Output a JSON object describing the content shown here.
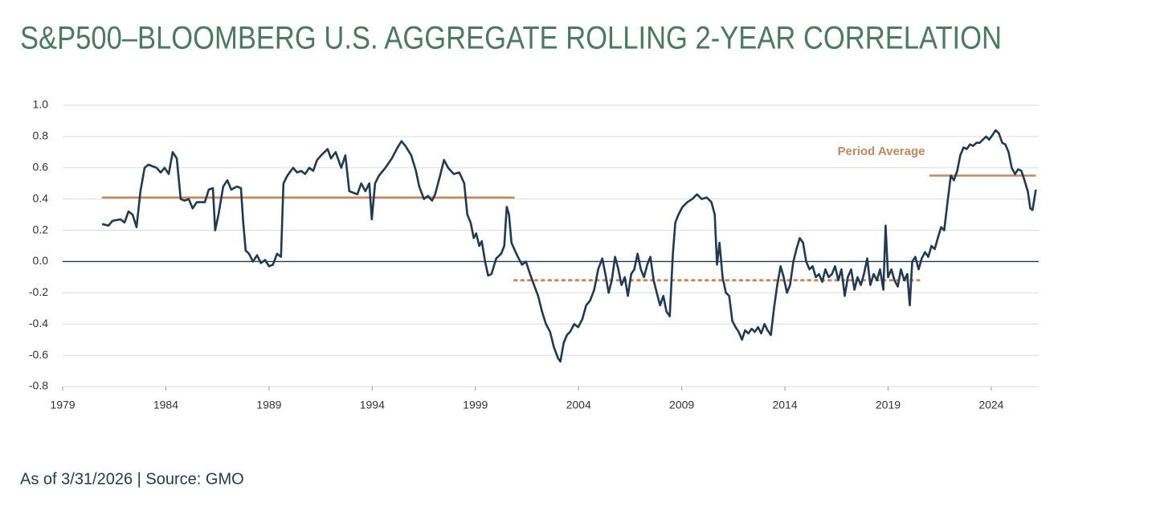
{
  "chart_data": {
    "type": "line",
    "title": "S&P500–BLOOMBERG U.S. AGGREGATE ROLLING 2-YEAR CORRELATION",
    "footnote": "As of 3/31/2026 | Source: GMO",
    "annotation": "Period Average",
    "color": "#1f3a52",
    "average_color": "#c8875a",
    "grid": true,
    "xlim": [
      1979,
      2026.3
    ],
    "xticks": [
      1979,
      1984,
      1989,
      1994,
      1999,
      2004,
      2009,
      2014,
      2019,
      2024
    ],
    "ylim": [
      -0.8,
      1.0
    ],
    "yticks": [
      {
        "value": 1,
        "label": "1.0"
      },
      0.8,
      0.6,
      0.4,
      0.2,
      {
        "value": 0,
        "label": "0.0"
      },
      -0.2,
      -0.4,
      -0.6,
      -0.8
    ],
    "reference_lines": [
      {
        "x": [
          1980.9,
          2000.9
        ],
        "value": 0.41,
        "style": "solid"
      },
      {
        "x": [
          2000.9,
          2020.5
        ],
        "value": -0.12,
        "style": "dotted"
      },
      {
        "x": [
          2021.0,
          2026.16
        ],
        "value": 0.55,
        "style": "solid"
      }
    ],
    "x": [
      1980.91,
      1981.22,
      1981.41,
      1981.8,
      1982.0,
      1982.19,
      1982.39,
      1982.58,
      1982.77,
      1982.97,
      1983.16,
      1983.55,
      1983.75,
      1983.94,
      1984.14,
      1984.33,
      1984.53,
      1984.72,
      1984.91,
      1985.11,
      1985.3,
      1985.5,
      1985.89,
      1986.08,
      1986.28,
      1986.39,
      1986.55,
      1986.78,
      1986.98,
      1987.17,
      1987.44,
      1987.64,
      1987.75,
      1987.87,
      1988.03,
      1988.22,
      1988.42,
      1988.61,
      1988.81,
      1989.0,
      1989.19,
      1989.39,
      1989.58,
      1989.7,
      1989.89,
      1990.17,
      1990.36,
      1990.56,
      1990.75,
      1990.95,
      1991.14,
      1991.33,
      1991.53,
      1991.84,
      1992.0,
      1992.23,
      1992.5,
      1992.7,
      1992.89,
      1993.09,
      1993.28,
      1993.47,
      1993.67,
      1993.86,
      1993.98,
      1994.14,
      1994.33,
      1994.64,
      1994.95,
      1995.23,
      1995.42,
      1995.61,
      1995.89,
      1996.12,
      1996.28,
      1996.51,
      1996.7,
      1996.9,
      1997.05,
      1997.29,
      1997.48,
      1997.68,
      1997.95,
      1998.22,
      1998.46,
      1998.61,
      1998.77,
      1998.92,
      1999.04,
      1999.19,
      1999.31,
      1999.47,
      1999.62,
      1999.78,
      2000.01,
      2000.25,
      2000.4,
      2000.52,
      2000.63,
      2000.75,
      2000.95,
      2001.1,
      2001.26,
      2001.45,
      2001.65,
      2001.84,
      2002.04,
      2002.23,
      2002.42,
      2002.62,
      2002.81,
      2003.01,
      2003.12,
      2003.28,
      2003.44,
      2003.59,
      2003.79,
      2003.98,
      2004.18,
      2004.37,
      2004.56,
      2004.76,
      2004.95,
      2005.15,
      2005.3,
      2005.46,
      2005.61,
      2005.77,
      2005.93,
      2006.08,
      2006.24,
      2006.39,
      2006.55,
      2006.7,
      2006.86,
      2007.02,
      2007.17,
      2007.33,
      2007.48,
      2007.64,
      2007.79,
      2007.95,
      2008.11,
      2008.26,
      2008.42,
      2008.57,
      2008.69,
      2008.84,
      2009.04,
      2009.27,
      2009.51,
      2009.74,
      2009.97,
      2010.21,
      2010.44,
      2010.6,
      2010.71,
      2010.83,
      2010.98,
      2011.14,
      2011.3,
      2011.45,
      2011.61,
      2011.76,
      2011.92,
      2012.07,
      2012.23,
      2012.39,
      2012.54,
      2012.7,
      2012.85,
      2013.01,
      2013.16,
      2013.32,
      2013.47,
      2013.63,
      2013.79,
      2013.94,
      2014.1,
      2014.25,
      2014.41,
      2014.56,
      2014.72,
      2014.88,
      2015.03,
      2015.19,
      2015.34,
      2015.5,
      2015.65,
      2015.81,
      2015.96,
      2016.12,
      2016.28,
      2016.43,
      2016.59,
      2016.74,
      2016.9,
      2017.05,
      2017.21,
      2017.37,
      2017.52,
      2017.68,
      2017.83,
      2017.99,
      2018.14,
      2018.3,
      2018.46,
      2018.61,
      2018.77,
      2018.88,
      2019.0,
      2019.16,
      2019.31,
      2019.47,
      2019.62,
      2019.78,
      2019.93,
      2020.05,
      2020.17,
      2020.32,
      2020.48,
      2020.63,
      2020.79,
      2020.95,
      2021.1,
      2021.26,
      2021.41,
      2021.57,
      2021.72,
      2021.88,
      2022.04,
      2022.19,
      2022.35,
      2022.5,
      2022.66,
      2022.81,
      2022.97,
      2023.12,
      2023.28,
      2023.44,
      2023.59,
      2023.75,
      2023.9,
      2024.06,
      2024.21,
      2024.37,
      2024.53,
      2024.68,
      2024.84,
      2024.99,
      2025.15,
      2025.3,
      2025.46,
      2025.61,
      2025.77,
      2025.89,
      2026.0,
      2026.16
    ],
    "values": [
      0.24,
      0.23,
      0.26,
      0.27,
      0.25,
      0.32,
      0.3,
      0.22,
      0.45,
      0.6,
      0.62,
      0.6,
      0.57,
      0.6,
      0.56,
      0.7,
      0.66,
      0.4,
      0.39,
      0.4,
      0.34,
      0.38,
      0.38,
      0.46,
      0.47,
      0.2,
      0.3,
      0.48,
      0.52,
      0.46,
      0.48,
      0.47,
      0.25,
      0.07,
      0.05,
      0.0,
      0.04,
      -0.01,
      0.01,
      -0.03,
      -0.02,
      0.05,
      0.03,
      0.5,
      0.55,
      0.6,
      0.57,
      0.58,
      0.56,
      0.6,
      0.58,
      0.65,
      0.68,
      0.72,
      0.66,
      0.7,
      0.6,
      0.68,
      0.45,
      0.44,
      0.43,
      0.5,
      0.45,
      0.5,
      0.27,
      0.5,
      0.55,
      0.6,
      0.66,
      0.73,
      0.77,
      0.74,
      0.68,
      0.58,
      0.48,
      0.4,
      0.42,
      0.39,
      0.43,
      0.55,
      0.65,
      0.6,
      0.56,
      0.57,
      0.5,
      0.3,
      0.25,
      0.15,
      0.18,
      0.1,
      0.13,
      0.0,
      -0.09,
      -0.08,
      0.02,
      0.05,
      0.1,
      0.35,
      0.3,
      0.12,
      0.06,
      0.02,
      -0.02,
      0.0,
      -0.08,
      -0.15,
      -0.22,
      -0.32,
      -0.4,
      -0.45,
      -0.55,
      -0.62,
      -0.64,
      -0.52,
      -0.47,
      -0.45,
      -0.4,
      -0.42,
      -0.37,
      -0.28,
      -0.25,
      -0.18,
      -0.05,
      0.02,
      -0.08,
      -0.2,
      -0.12,
      0.03,
      -0.05,
      -0.15,
      -0.1,
      -0.22,
      -0.08,
      -0.05,
      0.05,
      -0.05,
      -0.1,
      -0.02,
      0.03,
      -0.12,
      -0.2,
      -0.28,
      -0.22,
      -0.32,
      -0.35,
      0.05,
      0.25,
      0.3,
      0.35,
      0.38,
      0.4,
      0.43,
      0.4,
      0.41,
      0.38,
      0.3,
      -0.02,
      0.12,
      -0.1,
      -0.2,
      -0.22,
      -0.38,
      -0.42,
      -0.45,
      -0.5,
      -0.44,
      -0.46,
      -0.43,
      -0.45,
      -0.42,
      -0.46,
      -0.4,
      -0.44,
      -0.47,
      -0.3,
      -0.15,
      -0.03,
      -0.1,
      -0.2,
      -0.15,
      0.0,
      0.08,
      0.15,
      0.12,
      0.0,
      -0.05,
      -0.03,
      -0.1,
      -0.08,
      -0.13,
      -0.05,
      -0.1,
      -0.08,
      -0.03,
      -0.12,
      -0.05,
      -0.22,
      -0.1,
      -0.05,
      -0.18,
      -0.1,
      -0.15,
      -0.08,
      0.02,
      -0.15,
      -0.08,
      -0.12,
      -0.05,
      -0.18,
      0.23,
      -0.1,
      -0.05,
      -0.12,
      -0.16,
      -0.05,
      -0.12,
      -0.08,
      -0.28,
      0.0,
      0.03,
      -0.05,
      0.02,
      0.06,
      0.03,
      0.1,
      0.08,
      0.15,
      0.22,
      0.2,
      0.38,
      0.55,
      0.52,
      0.58,
      0.68,
      0.73,
      0.72,
      0.75,
      0.74,
      0.76,
      0.76,
      0.78,
      0.8,
      0.78,
      0.81,
      0.84,
      0.82,
      0.76,
      0.75,
      0.7,
      0.6,
      0.56,
      0.59,
      0.58,
      0.52,
      0.45,
      0.34,
      0.33,
      0.46
    ]
  }
}
